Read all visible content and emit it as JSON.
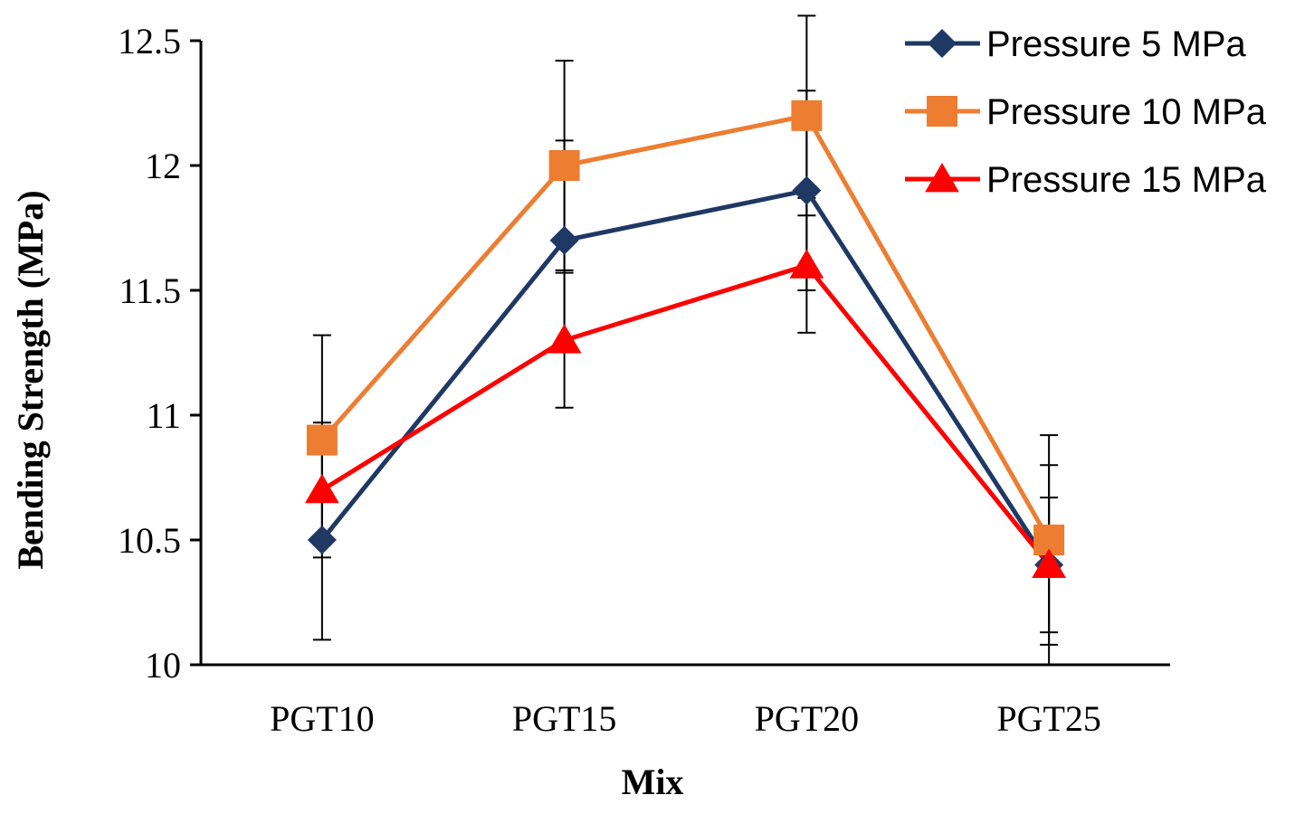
{
  "chart_data": {
    "type": "line",
    "title": "",
    "xlabel": "Mix",
    "ylabel": "Bending Strength (MPa)",
    "categories": [
      "PGT10",
      "PGT15",
      "PGT20",
      "PGT25"
    ],
    "ylim": [
      10,
      12.5
    ],
    "yticks": [
      10,
      10.5,
      11,
      11.5,
      12,
      12.5
    ],
    "ytick_labels": [
      "10",
      "10.5",
      "11",
      "11.5",
      "12",
      "12.5"
    ],
    "grid": false,
    "legend_position": "top-right",
    "series": [
      {
        "name": "Pressure 5 MPa",
        "values": [
          10.5,
          11.7,
          11.9,
          10.4
        ],
        "error": [
          0.4,
          0.4,
          0.4,
          0.4
        ],
        "color": "#1f3864",
        "marker": "diamond"
      },
      {
        "name": "Pressure 10 MPa",
        "values": [
          10.9,
          12.0,
          12.2,
          10.5
        ],
        "error": [
          0.42,
          0.42,
          0.4,
          0.42
        ],
        "color": "#ed7d31",
        "marker": "square"
      },
      {
        "name": "Pressure 15 MPa",
        "values": [
          10.7,
          11.3,
          11.6,
          10.4
        ],
        "error": [
          0.27,
          0.27,
          0.27,
          0.27
        ],
        "color": "#ff0000",
        "marker": "triangle"
      }
    ]
  }
}
